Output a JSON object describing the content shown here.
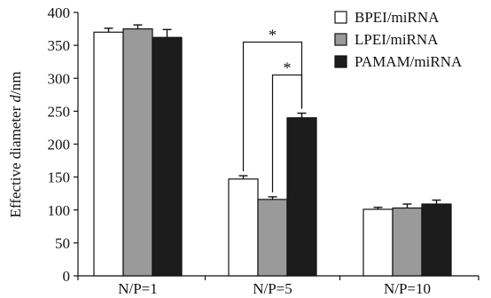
{
  "chart_data": {
    "type": "bar",
    "categories": [
      "N/P=1",
      "N/P=5",
      "N/P=10"
    ],
    "series": [
      {
        "name": "BPEI/miRNA",
        "values": [
          370,
          147,
          101
        ],
        "errors": [
          6,
          5,
          3
        ],
        "color": "#ffffff"
      },
      {
        "name": "LPEI/miRNA",
        "values": [
          375,
          116,
          103
        ],
        "errors": [
          6,
          4,
          6
        ],
        "color": "#9a9a9a"
      },
      {
        "name": "PAMAM/miRNA",
        "values": [
          362,
          240,
          109
        ],
        "errors": [
          12,
          7,
          6
        ],
        "color": "#1c1c1c"
      }
    ],
    "ylabel_prefix": "Effective diameter ",
    "ylabel_var": "d",
    "ylabel_suffix": "/nm",
    "ylim": [
      0,
      400
    ],
    "yticks": [
      "0",
      "50",
      "100",
      "150",
      "200",
      "250",
      "300",
      "350",
      "400"
    ],
    "legend_position": "top-right",
    "significance": [
      {
        "label": "*",
        "from_series": 0,
        "to_series": 2,
        "category": 1,
        "level": 355
      },
      {
        "label": "*",
        "from_series": 1,
        "to_series": 2,
        "category": 1,
        "level": 305
      }
    ],
    "grid": false
  }
}
